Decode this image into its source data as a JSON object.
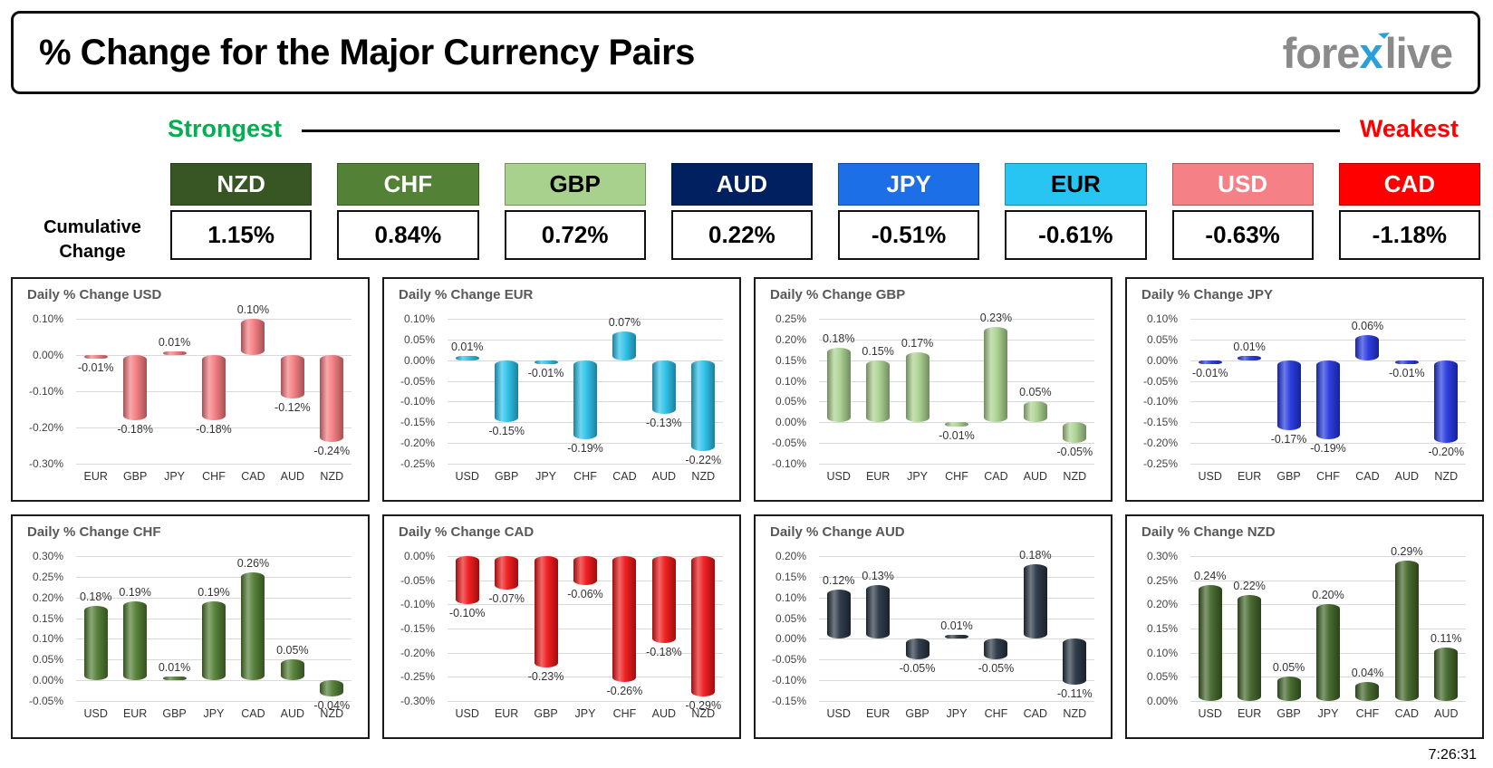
{
  "header": {
    "title": "% Change for the Major Currency Pairs",
    "logo": {
      "fore": "fore",
      "x": "x",
      "live": "live"
    }
  },
  "scale": {
    "strongest": "Strongest",
    "weakest": "Weakest"
  },
  "cumulative": {
    "label_line1": "Cumulative",
    "label_line2": "Change",
    "items": [
      {
        "currency": "NZD",
        "value": "1.15%",
        "color": "#375623",
        "text_color": "#ffffff"
      },
      {
        "currency": "CHF",
        "value": "0.84%",
        "color": "#538135",
        "text_color": "#ffffff"
      },
      {
        "currency": "GBP",
        "value": "0.72%",
        "color": "#a9d18e",
        "text_color": "#000000"
      },
      {
        "currency": "AUD",
        "value": "0.22%",
        "color": "#002060",
        "text_color": "#ffffff"
      },
      {
        "currency": "JPY",
        "value": "-0.51%",
        "color": "#1d6fe8",
        "text_color": "#ffffff"
      },
      {
        "currency": "EUR",
        "value": "-0.61%",
        "color": "#29c5f2",
        "text_color": "#000000"
      },
      {
        "currency": "USD",
        "value": "-0.63%",
        "color": "#f58085",
        "text_color": "#ffffff"
      },
      {
        "currency": "CAD",
        "value": "-1.18%",
        "color": "#fe0000",
        "text_color": "#ffffff"
      }
    ]
  },
  "chart_data": [
    {
      "id": "usd",
      "type": "bar",
      "title": "Daily % Change USD",
      "bar_color": "#f4797e",
      "ymax": 0.1,
      "ymin": -0.3,
      "yticks": [
        0.1,
        0.0,
        -0.1,
        -0.2,
        -0.3
      ],
      "ytick_labels": [
        "0.10%",
        "0.00%",
        "-0.10%",
        "-0.20%",
        "-0.30%"
      ],
      "categories": [
        "EUR",
        "GBP",
        "JPY",
        "CHF",
        "CAD",
        "AUD",
        "NZD"
      ],
      "values": [
        -0.01,
        -0.18,
        0.01,
        -0.18,
        0.1,
        -0.12,
        -0.24
      ],
      "labels": [
        "-0.01%",
        "-0.18%",
        "0.01%",
        "-0.18%",
        "0.10%",
        "-0.12%",
        "-0.24%"
      ]
    },
    {
      "id": "eur",
      "type": "bar",
      "title": "Daily % Change EUR",
      "bar_color": "#27c0ea",
      "ymax": 0.1,
      "ymin": -0.25,
      "yticks": [
        0.1,
        0.05,
        0.0,
        -0.05,
        -0.1,
        -0.15,
        -0.2,
        -0.25
      ],
      "ytick_labels": [
        "0.10%",
        "0.05%",
        "0.00%",
        "-0.05%",
        "-0.10%",
        "-0.15%",
        "-0.20%",
        "-0.25%"
      ],
      "categories": [
        "USD",
        "GBP",
        "JPY",
        "CHF",
        "CAD",
        "AUD",
        "NZD"
      ],
      "values": [
        0.01,
        -0.15,
        -0.01,
        -0.19,
        0.07,
        -0.13,
        -0.22
      ],
      "labels": [
        "0.01%",
        "-0.15%",
        "-0.01%",
        "-0.19%",
        "0.07%",
        "-0.13%",
        "-0.22%"
      ]
    },
    {
      "id": "gbp",
      "type": "bar",
      "title": "Daily % Change GBP",
      "bar_color": "#a9d18e",
      "ymax": 0.25,
      "ymin": -0.1,
      "yticks": [
        0.25,
        0.2,
        0.15,
        0.1,
        0.05,
        0.0,
        -0.05,
        -0.1
      ],
      "ytick_labels": [
        "0.25%",
        "0.20%",
        "0.15%",
        "0.10%",
        "0.05%",
        "0.00%",
        "-0.05%",
        "-0.10%"
      ],
      "categories": [
        "USD",
        "EUR",
        "JPY",
        "CHF",
        "CAD",
        "AUD",
        "NZD"
      ],
      "values": [
        0.18,
        0.15,
        0.17,
        -0.01,
        0.23,
        0.05,
        -0.05
      ],
      "labels": [
        "0.18%",
        "0.15%",
        "0.17%",
        "-0.01%",
        "0.23%",
        "0.05%",
        "-0.05%"
      ]
    },
    {
      "id": "jpy",
      "type": "bar",
      "title": "Daily % Change JPY",
      "bar_color": "#2134df",
      "ymax": 0.1,
      "ymin": -0.25,
      "yticks": [
        0.1,
        0.05,
        0.0,
        -0.05,
        -0.1,
        -0.15,
        -0.2,
        -0.25
      ],
      "ytick_labels": [
        "0.10%",
        "0.05%",
        "0.00%",
        "-0.05%",
        "-0.10%",
        "-0.15%",
        "-0.20%",
        "-0.25%"
      ],
      "categories": [
        "USD",
        "EUR",
        "GBP",
        "CHF",
        "CAD",
        "AUD",
        "NZD"
      ],
      "values": [
        -0.01,
        0.01,
        -0.17,
        -0.19,
        0.06,
        -0.01,
        -0.2
      ],
      "labels": [
        "-0.01%",
        "0.01%",
        "-0.17%",
        "-0.19%",
        "0.06%",
        "-0.01%",
        "-0.20%"
      ]
    },
    {
      "id": "chf",
      "type": "bar",
      "title": "Daily % Change CHF",
      "bar_color": "#4e7a2f",
      "ymax": 0.3,
      "ymin": -0.05,
      "yticks": [
        0.3,
        0.25,
        0.2,
        0.15,
        0.1,
        0.05,
        0.0,
        -0.05
      ],
      "ytick_labels": [
        "0.30%",
        "0.25%",
        "0.20%",
        "0.15%",
        "0.10%",
        "0.05%",
        "0.00%",
        "-0.05%"
      ],
      "categories": [
        "USD",
        "EUR",
        "GBP",
        "JPY",
        "CAD",
        "AUD",
        "NZD"
      ],
      "values": [
        0.18,
        0.19,
        0.01,
        0.19,
        0.26,
        0.05,
        -0.04
      ],
      "labels": [
        "0.18%",
        "0.19%",
        "0.01%",
        "0.19%",
        "0.26%",
        "0.05%",
        "-0.04%"
      ]
    },
    {
      "id": "cad",
      "type": "bar",
      "title": "Daily % Change CAD",
      "bar_color": "#ee1315",
      "ymax": 0.0,
      "ymin": -0.3,
      "yticks": [
        0.0,
        -0.05,
        -0.1,
        -0.15,
        -0.2,
        -0.25,
        -0.3
      ],
      "ytick_labels": [
        "0.00%",
        "-0.05%",
        "-0.10%",
        "-0.15%",
        "-0.20%",
        "-0.25%",
        "-0.30%"
      ],
      "categories": [
        "USD",
        "EUR",
        "GBP",
        "JPY",
        "CHF",
        "AUD",
        "NZD"
      ],
      "values": [
        -0.1,
        -0.07,
        -0.23,
        -0.06,
        -0.26,
        -0.18,
        -0.29
      ],
      "labels": [
        "-0.10%",
        "-0.07%",
        "-0.23%",
        "-0.06%",
        "-0.26%",
        "-0.18%",
        "-0.29%"
      ]
    },
    {
      "id": "aud",
      "type": "bar",
      "title": "Daily % Change AUD",
      "bar_color": "#263241",
      "ymax": 0.2,
      "ymin": -0.15,
      "yticks": [
        0.2,
        0.15,
        0.1,
        0.05,
        0.0,
        -0.05,
        -0.1,
        -0.15
      ],
      "ytick_labels": [
        "0.20%",
        "0.15%",
        "0.10%",
        "0.05%",
        "0.00%",
        "-0.05%",
        "-0.10%",
        "-0.15%"
      ],
      "categories": [
        "USD",
        "EUR",
        "GBP",
        "JPY",
        "CHF",
        "CAD",
        "NZD"
      ],
      "values": [
        0.12,
        0.13,
        -0.05,
        0.01,
        -0.05,
        0.18,
        -0.11
      ],
      "labels": [
        "0.12%",
        "0.13%",
        "-0.05%",
        "0.01%",
        "-0.05%",
        "0.18%",
        "-0.11%"
      ]
    },
    {
      "id": "nzd",
      "type": "bar",
      "title": "Daily % Change NZD",
      "bar_color": "#3f6326",
      "ymax": 0.3,
      "ymin": 0.0,
      "yticks": [
        0.3,
        0.25,
        0.2,
        0.15,
        0.1,
        0.05,
        0.0
      ],
      "ytick_labels": [
        "0.30%",
        "0.25%",
        "0.20%",
        "0.15%",
        "0.10%",
        "0.05%",
        "0.00%"
      ],
      "categories": [
        "USD",
        "EUR",
        "GBP",
        "JPY",
        "CHF",
        "CAD",
        "AUD"
      ],
      "values": [
        0.24,
        0.22,
        0.05,
        0.2,
        0.04,
        0.29,
        0.11
      ],
      "labels": [
        "0.24%",
        "0.22%",
        "0.05%",
        "0.20%",
        "0.04%",
        "0.29%",
        "0.11%"
      ]
    }
  ],
  "footer": {
    "time": "7:26:31"
  }
}
